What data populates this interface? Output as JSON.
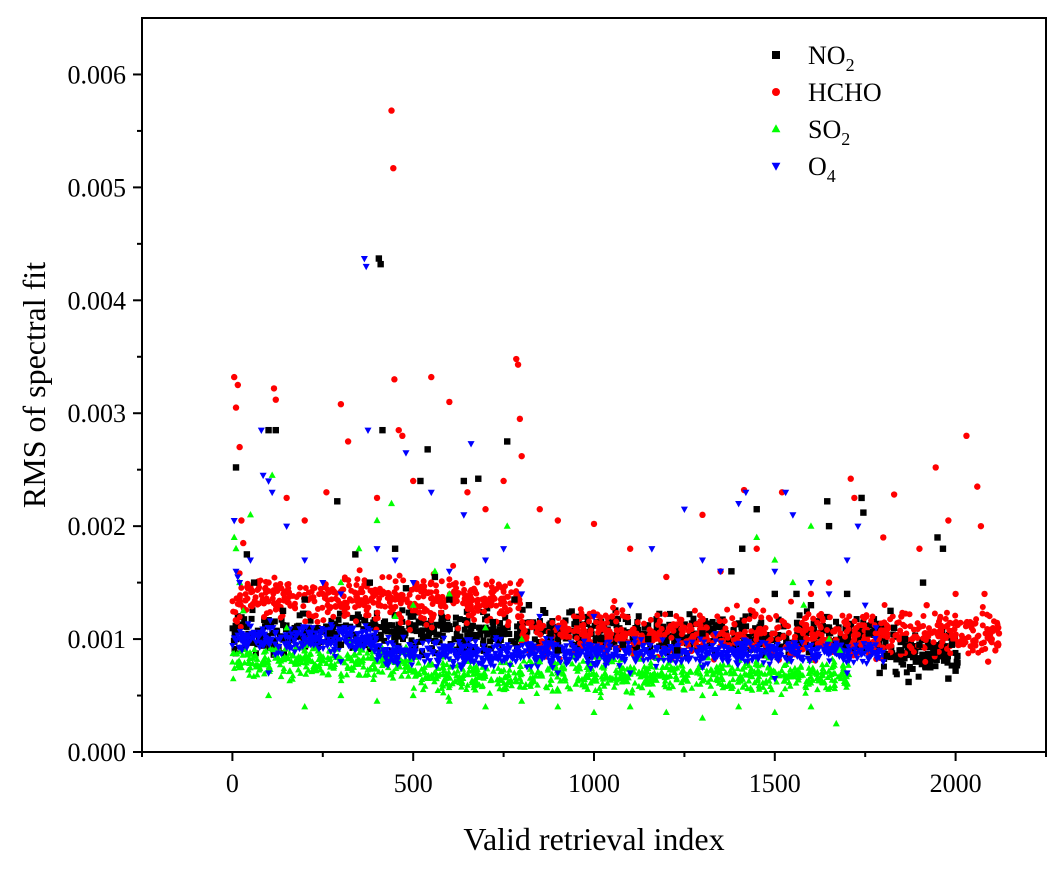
{
  "chart_data": {
    "type": "scatter",
    "title": "",
    "xlabel": "Valid retrieval index",
    "ylabel": "RMS of spectral fit",
    "xlim": [
      -250,
      2250
    ],
    "ylim": [
      0,
      0.0065
    ],
    "x_ticks": [
      {
        "value": 0,
        "label": "0"
      },
      {
        "value": 500,
        "label": "500"
      },
      {
        "value": 1000,
        "label": "1000"
      },
      {
        "value": 1500,
        "label": "1500"
      },
      {
        "value": 2000,
        "label": "2000"
      }
    ],
    "y_ticks": [
      {
        "value": 0.0,
        "label": "0.000"
      },
      {
        "value": 0.001,
        "label": "0.001"
      },
      {
        "value": 0.002,
        "label": "0.002"
      },
      {
        "value": 0.003,
        "label": "0.003"
      },
      {
        "value": 0.004,
        "label": "0.004"
      },
      {
        "value": 0.005,
        "label": "0.005"
      },
      {
        "value": 0.006,
        "label": "0.006"
      }
    ],
    "grid": false,
    "legend_position": "top-right",
    "series": [
      {
        "name": "NO2",
        "label_main": "NO",
        "label_sub": "2",
        "marker": "square",
        "color": "#000000",
        "points": [
          [
            10,
            0.00252
          ],
          [
            40,
            0.00175
          ],
          [
            60,
            0.0015
          ],
          [
            100,
            0.00285
          ],
          [
            120,
            0.00285
          ],
          [
            140,
            0.00125
          ],
          [
            200,
            0.00135
          ],
          [
            270,
            0.00105
          ],
          [
            290,
            0.00222
          ],
          [
            340,
            0.00175
          ],
          [
            380,
            0.0015
          ],
          [
            405,
            0.00437
          ],
          [
            410,
            0.00432
          ],
          [
            415,
            0.00285
          ],
          [
            450,
            0.0018
          ],
          [
            480,
            0.00145
          ],
          [
            520,
            0.0024
          ],
          [
            540,
            0.00268
          ],
          [
            560,
            0.00155
          ],
          [
            600,
            0.00135
          ],
          [
            640,
            0.0024
          ],
          [
            680,
            0.00242
          ],
          [
            720,
            0.00115
          ],
          [
            760,
            0.00275
          ],
          [
            780,
            0.00135
          ],
          [
            820,
            0.0013
          ],
          [
            880,
            0.00105
          ],
          [
            950,
            0.00115
          ],
          [
            1020,
            0.001
          ],
          [
            1080,
            0.00095
          ],
          [
            1150,
            0.001
          ],
          [
            1230,
            0.0009
          ],
          [
            1300,
            0.00105
          ],
          [
            1380,
            0.0016
          ],
          [
            1410,
            0.0018
          ],
          [
            1450,
            0.00215
          ],
          [
            1500,
            0.0014
          ],
          [
            1560,
            0.0014
          ],
          [
            1600,
            0.0013
          ],
          [
            1645,
            0.00222
          ],
          [
            1650,
            0.002
          ],
          [
            1700,
            0.0014
          ],
          [
            1740,
            0.00225
          ],
          [
            1745,
            0.00212
          ],
          [
            1760,
            0.00105
          ],
          [
            1790,
            0.0007
          ],
          [
            1810,
            0.00085
          ],
          [
            1830,
            0.0011
          ],
          [
            1850,
            0.0009
          ],
          [
            1870,
            0.00062
          ],
          [
            1890,
            0.0008
          ],
          [
            1910,
            0.0015
          ],
          [
            1930,
            0.00075
          ],
          [
            1950,
            0.0019
          ],
          [
            1965,
            0.0018
          ],
          [
            1980,
            0.00065
          ],
          [
            2000,
            0.00072
          ],
          [
            1820,
            0.00125
          ],
          [
            1860,
            0.001
          ],
          [
            1900,
            0.00095
          ],
          [
            1940,
            0.00088
          ],
          [
            1990,
            0.00095
          ],
          [
            2005,
            0.00085
          ],
          [
            300,
            0.00095
          ],
          [
            500,
            0.0012
          ],
          [
            700,
            0.0011
          ],
          [
            900,
            0.0009
          ]
        ]
      },
      {
        "name": "HCHO",
        "label_main": "HCHO",
        "label_sub": "",
        "marker": "circle",
        "color": "#ff0000",
        "points": [
          [
            5,
            0.00332
          ],
          [
            10,
            0.00305
          ],
          [
            15,
            0.00325
          ],
          [
            20,
            0.0027
          ],
          [
            25,
            0.00205
          ],
          [
            30,
            0.00185
          ],
          [
            115,
            0.00322
          ],
          [
            120,
            0.00312
          ],
          [
            150,
            0.00225
          ],
          [
            200,
            0.00205
          ],
          [
            260,
            0.0023
          ],
          [
            300,
            0.00308
          ],
          [
            320,
            0.00275
          ],
          [
            400,
            0.00225
          ],
          [
            440,
            0.00568
          ],
          [
            445,
            0.00517
          ],
          [
            448,
            0.0033
          ],
          [
            460,
            0.00285
          ],
          [
            470,
            0.0028
          ],
          [
            500,
            0.0024
          ],
          [
            550,
            0.00332
          ],
          [
            600,
            0.0031
          ],
          [
            650,
            0.0023
          ],
          [
            700,
            0.00215
          ],
          [
            750,
            0.0024
          ],
          [
            785,
            0.00348
          ],
          [
            790,
            0.00343
          ],
          [
            795,
            0.00295
          ],
          [
            800,
            0.00262
          ],
          [
            850,
            0.00215
          ],
          [
            900,
            0.00205
          ],
          [
            1000,
            0.00202
          ],
          [
            1100,
            0.0018
          ],
          [
            1200,
            0.00155
          ],
          [
            1300,
            0.0021
          ],
          [
            1350,
            0.0016
          ],
          [
            1415,
            0.00232
          ],
          [
            1450,
            0.0018
          ],
          [
            1520,
            0.0023
          ],
          [
            1600,
            0.0014
          ],
          [
            1650,
            0.0015
          ],
          [
            1710,
            0.00242
          ],
          [
            1720,
            0.00225
          ],
          [
            1800,
            0.0019
          ],
          [
            1830,
            0.00228
          ],
          [
            1900,
            0.0018
          ],
          [
            1945,
            0.00252
          ],
          [
            1980,
            0.00205
          ],
          [
            2000,
            0.0014
          ],
          [
            2030,
            0.0028
          ],
          [
            2060,
            0.00235
          ],
          [
            2070,
            0.002
          ],
          [
            2080,
            0.0014
          ],
          [
            2100,
            0.001
          ],
          [
            2110,
            0.0009
          ],
          [
            2120,
            0.00105
          ],
          [
            1850,
            0.0012
          ],
          [
            1880,
            0.001
          ],
          [
            1920,
            0.0013
          ],
          [
            1960,
            0.0011
          ],
          [
            2010,
            0.00095
          ],
          [
            2040,
            0.00115
          ],
          [
            2090,
            0.0008
          ],
          [
            100,
            0.0015
          ],
          [
            250,
            0.0014
          ],
          [
            350,
            0.0013
          ],
          [
            550,
            0.0015
          ],
          [
            650,
            0.0013
          ],
          [
            1050,
            0.0012
          ],
          [
            1250,
            0.0011
          ]
        ]
      },
      {
        "name": "SO2",
        "label_main": "SO",
        "label_sub": "2",
        "marker": "triangle-up",
        "color": "#00ff00",
        "points": [
          [
            5,
            0.0019
          ],
          [
            10,
            0.0018
          ],
          [
            20,
            0.0015
          ],
          [
            30,
            0.00125
          ],
          [
            50,
            0.0021
          ],
          [
            110,
            0.00245
          ],
          [
            150,
            0.0011
          ],
          [
            200,
            0.0009
          ],
          [
            250,
            0.0007
          ],
          [
            300,
            0.0015
          ],
          [
            350,
            0.0018
          ],
          [
            400,
            0.00205
          ],
          [
            440,
            0.0022
          ],
          [
            450,
            0.0012
          ],
          [
            500,
            0.0013
          ],
          [
            560,
            0.0016
          ],
          [
            600,
            0.0014
          ],
          [
            700,
            0.0011
          ],
          [
            760,
            0.002
          ],
          [
            800,
            0.001
          ],
          [
            850,
            0.0008
          ],
          [
            900,
            0.0007
          ],
          [
            950,
            0.0006
          ],
          [
            1000,
            0.00065
          ],
          [
            1050,
            0.0008
          ],
          [
            1100,
            0.0007
          ],
          [
            1150,
            0.0006
          ],
          [
            1200,
            0.00075
          ],
          [
            1250,
            0.00055
          ],
          [
            1300,
            0.0005
          ],
          [
            1350,
            0.0007
          ],
          [
            1400,
            0.00065
          ],
          [
            1450,
            0.0019
          ],
          [
            1500,
            0.0017
          ],
          [
            1550,
            0.0015
          ],
          [
            1580,
            0.0013
          ],
          [
            1600,
            0.002
          ],
          [
            1650,
            0.001
          ],
          [
            1680,
            0.0009
          ],
          [
            1700,
            0.0006
          ],
          [
            100,
            0.0005
          ],
          [
            200,
            0.0004
          ],
          [
            300,
            0.0005
          ],
          [
            400,
            0.00045
          ],
          [
            500,
            0.0005
          ],
          [
            600,
            0.00045
          ],
          [
            700,
            0.0004
          ],
          [
            800,
            0.00045
          ],
          [
            900,
            0.0004
          ],
          [
            1000,
            0.00035
          ],
          [
            1100,
            0.0004
          ],
          [
            1200,
            0.00035
          ],
          [
            1300,
            0.0003
          ],
          [
            1400,
            0.0004
          ],
          [
            1500,
            0.00035
          ],
          [
            1600,
            0.0004
          ],
          [
            1670,
            0.00025
          ]
        ]
      },
      {
        "name": "O4",
        "label_main": "O",
        "label_sub": "4",
        "marker": "triangle-down",
        "color": "#0000ff",
        "points": [
          [
            5,
            0.00205
          ],
          [
            10,
            0.0016
          ],
          [
            15,
            0.00155
          ],
          [
            20,
            0.0015
          ],
          [
            50,
            0.0017
          ],
          [
            80,
            0.00285
          ],
          [
            85,
            0.00245
          ],
          [
            100,
            0.0024
          ],
          [
            110,
            0.0023
          ],
          [
            150,
            0.002
          ],
          [
            200,
            0.0017
          ],
          [
            250,
            0.0015
          ],
          [
            300,
            0.0014
          ],
          [
            365,
            0.00437
          ],
          [
            370,
            0.0043
          ],
          [
            375,
            0.00285
          ],
          [
            400,
            0.0018
          ],
          [
            450,
            0.0017
          ],
          [
            480,
            0.00265
          ],
          [
            500,
            0.0015
          ],
          [
            550,
            0.0023
          ],
          [
            600,
            0.0016
          ],
          [
            640,
            0.0021
          ],
          [
            660,
            0.00273
          ],
          [
            700,
            0.0017
          ],
          [
            750,
            0.0018
          ],
          [
            800,
            0.0014
          ],
          [
            850,
            0.0012
          ],
          [
            900,
            0.0011
          ],
          [
            1000,
            0.0012
          ],
          [
            1100,
            0.0013
          ],
          [
            1160,
            0.0018
          ],
          [
            1250,
            0.00215
          ],
          [
            1300,
            0.0017
          ],
          [
            1350,
            0.0016
          ],
          [
            1400,
            0.0022
          ],
          [
            1420,
            0.0023
          ],
          [
            1500,
            0.0016
          ],
          [
            1530,
            0.0023
          ],
          [
            1550,
            0.0021
          ],
          [
            1600,
            0.0015
          ],
          [
            1650,
            0.0014
          ],
          [
            1700,
            0.0017
          ],
          [
            1730,
            0.002
          ],
          [
            1750,
            0.0013
          ],
          [
            1780,
            0.0011
          ],
          [
            1790,
            0.0009
          ],
          [
            1800,
            0.0008
          ],
          [
            100,
            0.0007
          ],
          [
            300,
            0.0008
          ],
          [
            500,
            0.00085
          ],
          [
            700,
            0.00075
          ],
          [
            900,
            0.0007
          ],
          [
            1100,
            0.0007
          ],
          [
            1300,
            0.00075
          ],
          [
            1500,
            0.00065
          ],
          [
            1700,
            0.0007
          ]
        ]
      }
    ]
  }
}
